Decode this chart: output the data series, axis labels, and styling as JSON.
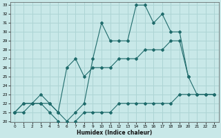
{
  "xlabel": "Humidex (Indice chaleur)",
  "background_color": "#c8e8e8",
  "grid_color": "#add4d4",
  "line_color": "#1f6b6b",
  "x_values": [
    0,
    1,
    2,
    3,
    4,
    5,
    6,
    7,
    8,
    9,
    10,
    11,
    12,
    13,
    14,
    15,
    16,
    17,
    18,
    19,
    20,
    21,
    22,
    23
  ],
  "line_jagged": [
    21,
    22,
    22,
    22,
    22,
    21,
    20,
    21,
    22,
    27,
    31,
    29,
    29,
    29,
    33,
    33,
    31,
    32,
    30,
    30,
    25,
    null,
    null,
    null
  ],
  "line_upper": [
    21,
    22,
    22,
    23,
    22,
    21,
    26,
    27,
    25,
    26,
    26,
    26,
    27,
    27,
    27,
    28,
    28,
    28,
    29,
    29,
    25,
    23,
    23,
    23
  ],
  "line_lower": [
    21,
    21,
    22,
    22,
    21,
    20,
    19,
    20,
    21,
    21,
    21,
    21,
    22,
    22,
    22,
    22,
    22,
    22,
    22,
    23,
    23,
    23,
    23,
    23
  ],
  "ylim": [
    20,
    33
  ],
  "xlim": [
    -0.5,
    23.5
  ],
  "yticks": [
    20,
    21,
    22,
    23,
    24,
    25,
    26,
    27,
    28,
    29,
    30,
    31,
    32,
    33
  ],
  "xticks": [
    0,
    1,
    2,
    3,
    4,
    5,
    6,
    7,
    8,
    9,
    10,
    11,
    12,
    13,
    14,
    15,
    16,
    17,
    18,
    19,
    20,
    21,
    22,
    23
  ]
}
